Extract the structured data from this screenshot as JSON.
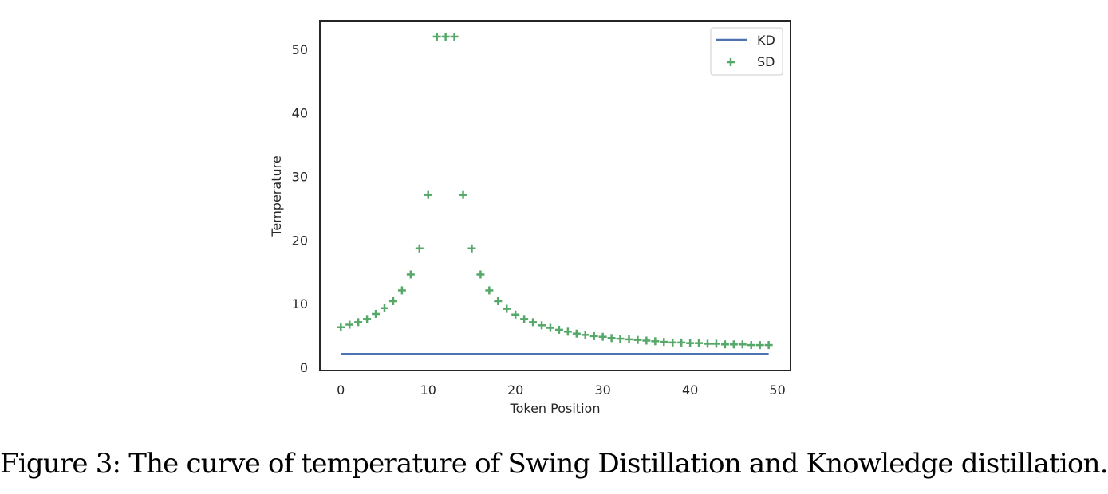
{
  "caption": "Figure 3: The curve of temperature of Swing Distillation and Knowledge distillation.",
  "chart_data": {
    "type": "line",
    "title": "",
    "xlabel": "Token Position",
    "ylabel": "Temperature",
    "xlim": [
      -2.4,
      51.5
    ],
    "ylim": [
      -0.5,
      54.5
    ],
    "xticks": [
      0,
      10,
      20,
      30,
      40,
      50
    ],
    "yticks": [
      0,
      10,
      20,
      30,
      40,
      50
    ],
    "grid": false,
    "legend_position": "top-right",
    "colors": {
      "KD": "#4c72b0",
      "SD": "#55a868",
      "frame": "#262626"
    },
    "series": [
      {
        "name": "KD",
        "style": "line",
        "x": [
          0,
          49
        ],
        "y": [
          2.1,
          2.1
        ]
      },
      {
        "name": "SD",
        "style": "plus-marker",
        "x": [
          0,
          1,
          2,
          3,
          4,
          5,
          6,
          7,
          8,
          9,
          10,
          11,
          12,
          13,
          14,
          15,
          16,
          17,
          18,
          19,
          20,
          21,
          22,
          23,
          24,
          25,
          26,
          27,
          28,
          29,
          30,
          31,
          32,
          33,
          34,
          35,
          36,
          37,
          38,
          39,
          40,
          41,
          42,
          43,
          44,
          45,
          46,
          47,
          48,
          49
        ],
        "y": [
          6.3,
          6.7,
          7.1,
          7.6,
          8.4,
          9.3,
          10.4,
          12.1,
          14.6,
          18.7,
          27.1,
          52.0,
          52.0,
          52.0,
          27.1,
          18.7,
          14.6,
          12.1,
          10.4,
          9.2,
          8.3,
          7.6,
          7.1,
          6.6,
          6.2,
          5.9,
          5.6,
          5.3,
          5.1,
          4.9,
          4.8,
          4.6,
          4.5,
          4.4,
          4.3,
          4.2,
          4.1,
          4.0,
          3.9,
          3.9,
          3.8,
          3.8,
          3.7,
          3.7,
          3.6,
          3.6,
          3.6,
          3.5,
          3.5,
          3.5
        ]
      }
    ]
  }
}
